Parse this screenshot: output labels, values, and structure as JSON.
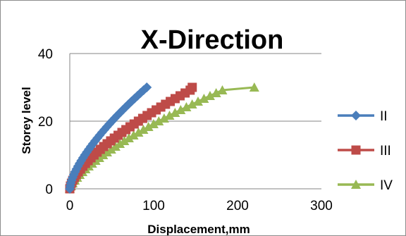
{
  "chart_data": {
    "type": "line",
    "title": "X-Direction",
    "xlabel": "Displacement,mm",
    "ylabel": "Storey level",
    "xlim": [
      0,
      300
    ],
    "ylim": [
      0,
      40
    ],
    "xticks": [
      0,
      100,
      200,
      300
    ],
    "yticks": [
      0,
      20,
      40
    ],
    "grid": "horizontal",
    "legend_position": "right",
    "series": [
      {
        "name": "II",
        "color": "#4a7ebb",
        "marker": "diamond",
        "x": [
          0,
          0.5,
          1.2,
          2.2,
          3.4,
          4.8,
          6.3,
          8.0,
          9.8,
          11.7,
          13.7,
          15.8,
          18.0,
          20.3,
          22.7,
          25.1,
          27.6,
          30.2,
          32.9,
          35.6,
          38.4,
          41.3,
          44.2,
          47.2,
          50.3,
          53.4,
          56.6,
          59.9,
          63.2,
          66.6,
          70.0,
          73.5,
          77.1,
          80.7,
          84.3,
          88.0,
          91.8
        ],
        "y": [
          0,
          0.83,
          1.67,
          2.5,
          3.33,
          4.17,
          5,
          5.83,
          6.67,
          7.5,
          8.33,
          9.17,
          10,
          10.83,
          11.67,
          12.5,
          13.33,
          14.17,
          15,
          15.83,
          16.67,
          17.5,
          18.33,
          19.17,
          20,
          20.83,
          21.67,
          22.5,
          23.33,
          24.17,
          25,
          25.83,
          26.67,
          27.5,
          28.33,
          29.17,
          30
        ]
      },
      {
        "name": "III",
        "color": "#be4b48",
        "marker": "square",
        "x": [
          0,
          0.8,
          2.0,
          3.6,
          5.5,
          7.7,
          10.1,
          12.8,
          15.6,
          18.7,
          21.9,
          25.3,
          28.9,
          32.6,
          36.4,
          40.4,
          44.5,
          48.7,
          53.1,
          57.6,
          62.2,
          66.9,
          71.8,
          76.7,
          81.8,
          86.9,
          92.2,
          97.5,
          103.0,
          108.5,
          114.1,
          119.8,
          125.6,
          131.5,
          137.5,
          143.5,
          146.0
        ],
        "y": [
          0,
          0.83,
          1.67,
          2.5,
          3.33,
          4.17,
          5,
          5.83,
          6.67,
          7.5,
          8.33,
          9.17,
          10,
          10.83,
          11.67,
          12.5,
          13.33,
          14.17,
          15,
          15.83,
          16.67,
          17.5,
          18.33,
          19.17,
          20,
          20.83,
          21.67,
          22.5,
          23.33,
          24.17,
          25,
          25.83,
          26.67,
          27.5,
          28.33,
          29.17,
          30
        ]
      },
      {
        "name": "IV",
        "color": "#98b954",
        "marker": "triangle",
        "x": [
          0,
          1.5,
          3.5,
          6.0,
          8.8,
          11.9,
          15.2,
          18.8,
          22.6,
          26.6,
          30.8,
          35.2,
          39.8,
          44.5,
          49.4,
          54.5,
          59.7,
          65.0,
          70.5,
          76.1,
          81.9,
          87.8,
          93.8,
          99.9,
          106.1,
          112.5,
          118.9,
          125.5,
          132.2,
          139.0,
          145.9,
          152.9,
          160.0,
          167.2,
          174.5,
          181.9,
          220.0
        ],
        "y": [
          0,
          0.83,
          1.67,
          2.5,
          3.33,
          4.17,
          5,
          5.83,
          6.67,
          7.5,
          8.33,
          9.17,
          10,
          10.83,
          11.67,
          12.5,
          13.33,
          14.17,
          15,
          15.83,
          16.67,
          17.5,
          18.33,
          19.17,
          20,
          20.83,
          21.67,
          22.5,
          23.33,
          24.17,
          25,
          25.83,
          26.67,
          27.5,
          28.33,
          29.17,
          30
        ]
      }
    ]
  }
}
